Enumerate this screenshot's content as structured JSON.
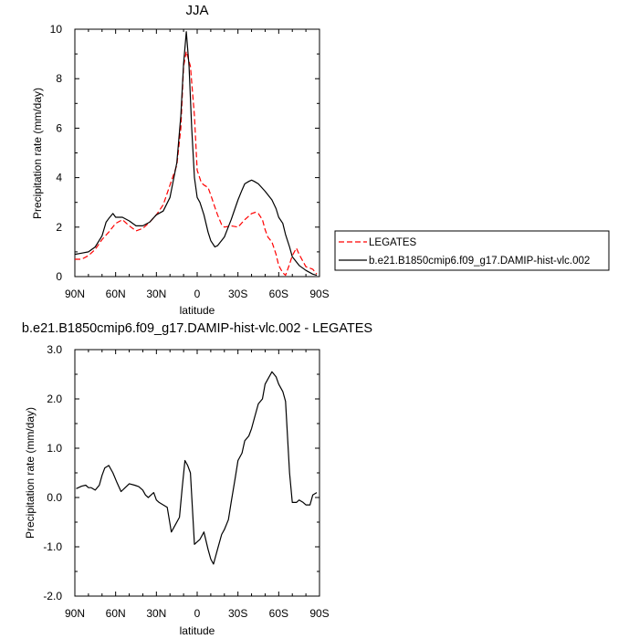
{
  "chart_data": [
    {
      "type": "line",
      "title": "JJA",
      "xlabel": "latitude",
      "ylabel": "Precipitation rate (mm/day)",
      "xlim": [
        90,
        -90
      ],
      "ylim": [
        0,
        10
      ],
      "xticks": [
        90,
        60,
        30,
        0,
        -30,
        -60,
        -90
      ],
      "xtick_labels": [
        "90N",
        "60N",
        "30N",
        "0",
        "30S",
        "60S",
        "90S"
      ],
      "yticks": [
        0,
        2,
        4,
        6,
        8,
        10
      ],
      "ytick_labels": [
        "0",
        "2",
        "4",
        "6",
        "8",
        "10"
      ],
      "legend": "right-outside",
      "series": [
        {
          "name": "LEGATES",
          "color": "#ff0000",
          "dash": "dashed",
          "x": [
            90,
            85,
            80,
            75,
            70,
            65,
            60,
            55,
            50,
            45,
            40,
            35,
            30,
            25,
            20,
            15,
            12,
            10,
            8,
            5,
            2,
            0,
            -3,
            -5,
            -8,
            -10,
            -13,
            -15,
            -18,
            -20,
            -25,
            -30,
            -35,
            -40,
            -43,
            -45,
            -48,
            -50,
            -52,
            -55,
            -58,
            -60,
            -63,
            -65,
            -68,
            -70,
            -73,
            -75,
            -78,
            -80,
            -85,
            -88
          ],
          "values": [
            0.7,
            0.7,
            0.85,
            1.1,
            1.5,
            1.8,
            2.15,
            2.3,
            2.05,
            1.85,
            1.95,
            2.2,
            2.5,
            2.9,
            3.7,
            4.5,
            6.0,
            8.5,
            9.1,
            8.5,
            6.5,
            4.3,
            3.8,
            3.7,
            3.6,
            3.3,
            2.8,
            2.5,
            2.1,
            2.0,
            2.05,
            2.0,
            2.3,
            2.55,
            2.6,
            2.55,
            2.3,
            1.9,
            1.6,
            1.4,
            0.9,
            0.45,
            0.15,
            0.05,
            0.5,
            0.85,
            1.15,
            0.9,
            0.6,
            0.4,
            0.3,
            0.1
          ]
        },
        {
          "name": "b.e21.B1850cmip6.f09_g17.DAMIP-hist-vlc.002",
          "color": "#000000",
          "dash": "solid",
          "x": [
            90,
            85,
            80,
            75,
            70,
            67,
            65,
            62,
            60,
            57,
            55,
            50,
            45,
            40,
            35,
            30,
            25,
            20,
            15,
            12,
            10,
            8,
            6,
            4,
            2,
            0,
            -2,
            -5,
            -8,
            -10,
            -13,
            -15,
            -20,
            -25,
            -30,
            -33,
            -35,
            -38,
            -40,
            -42,
            -45,
            -50,
            -55,
            -58,
            -60,
            -63,
            -65,
            -68,
            -70,
            -75,
            -80,
            -85,
            -88
          ],
          "values": [
            0.9,
            0.95,
            1.0,
            1.2,
            1.65,
            2.2,
            2.35,
            2.55,
            2.4,
            2.4,
            2.4,
            2.25,
            2.05,
            2.05,
            2.2,
            2.5,
            2.65,
            3.2,
            4.6,
            6.5,
            8.6,
            9.9,
            8.5,
            6.0,
            4.0,
            3.2,
            3.0,
            2.5,
            1.8,
            1.45,
            1.2,
            1.25,
            1.6,
            2.3,
            3.1,
            3.5,
            3.75,
            3.85,
            3.9,
            3.85,
            3.75,
            3.45,
            3.1,
            2.75,
            2.4,
            2.15,
            1.7,
            1.2,
            0.8,
            0.45,
            0.25,
            0.1,
            0.05
          ]
        }
      ]
    },
    {
      "type": "line",
      "title": "b.e21.B1850cmip6.f09_g17.DAMIP-hist-vlc.002 - LEGATES",
      "xlabel": "latitude",
      "ylabel": "Precipitation rate (mm/day)",
      "xlim": [
        90,
        -90
      ],
      "ylim": [
        -2,
        3
      ],
      "xticks": [
        90,
        60,
        30,
        0,
        -30,
        -60,
        -90
      ],
      "xtick_labels": [
        "90N",
        "60N",
        "30N",
        "0",
        "30S",
        "60S",
        "90S"
      ],
      "yticks": [
        -2,
        -1,
        0,
        1,
        2,
        3
      ],
      "ytick_labels": [
        "-2.0",
        "-1.0",
        "0.0",
        "1.0",
        "2.0",
        "3.0"
      ],
      "series": [
        {
          "color": "#000000",
          "dash": "solid",
          "x": [
            89,
            85,
            82,
            80,
            78,
            75,
            72,
            70,
            68,
            65,
            62,
            59,
            56,
            53,
            50,
            46,
            43,
            40,
            38,
            36,
            34,
            32,
            30,
            28,
            25,
            22,
            19,
            16,
            13,
            11,
            9,
            7,
            5,
            2,
            0,
            -2,
            -5,
            -8,
            -10,
            -12,
            -15,
            -18,
            -20,
            -23,
            -25,
            -28,
            -30,
            -33,
            -35,
            -38,
            -40,
            -42,
            -45,
            -48,
            -50,
            -53,
            -55,
            -58,
            -60,
            -63,
            -65,
            -68,
            -70,
            -73,
            -75,
            -78,
            -80,
            -83,
            -85,
            -88
          ],
          "values": [
            0.18,
            0.23,
            0.25,
            0.2,
            0.2,
            0.15,
            0.25,
            0.45,
            0.6,
            0.65,
            0.5,
            0.3,
            0.12,
            0.2,
            0.28,
            0.25,
            0.22,
            0.15,
            0.05,
            0.0,
            0.05,
            0.1,
            -0.05,
            -0.1,
            -0.15,
            -0.2,
            -0.7,
            -0.55,
            -0.4,
            0.2,
            0.75,
            0.65,
            0.5,
            -0.95,
            -0.9,
            -0.85,
            -0.7,
            -1.05,
            -1.25,
            -1.35,
            -1.05,
            -0.75,
            -0.65,
            -0.45,
            -0.1,
            0.4,
            0.75,
            0.9,
            1.15,
            1.25,
            1.4,
            1.6,
            1.9,
            2.0,
            2.3,
            2.45,
            2.55,
            2.45,
            2.3,
            2.15,
            1.95,
            0.5,
            -0.1,
            -0.1,
            -0.05,
            -0.1,
            -0.15,
            -0.15,
            0.05,
            0.1
          ]
        }
      ]
    }
  ]
}
